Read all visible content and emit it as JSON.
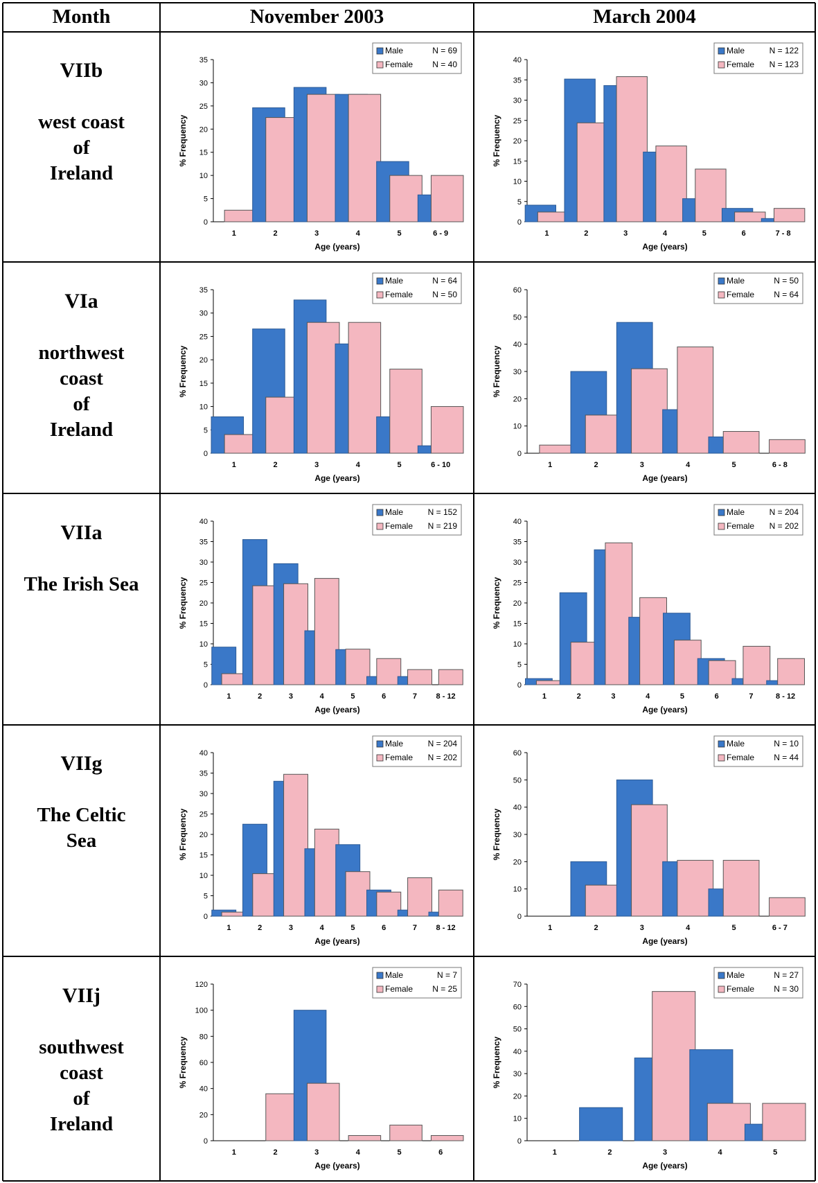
{
  "table": {
    "headers": [
      "Month",
      "November 2003",
      "March 2004"
    ],
    "rows": [
      {
        "code": "VIIb",
        "name": "west coast\nof\nIreland"
      },
      {
        "code": "VIa",
        "name": "northwest\ncoast\nof\nIreland"
      },
      {
        "code": "VIIa",
        "name": "The Irish Sea"
      },
      {
        "code": "VIIg",
        "name": "The Celtic\nSea"
      },
      {
        "code": "VIIj",
        "name": "southwest\ncoast\nof\nIreland"
      }
    ]
  },
  "colors": {
    "male": "#3a78c8",
    "female": "#f4b7c0",
    "grid": "#000000"
  },
  "chart_data": [
    {
      "id": "c00",
      "type": "bar",
      "ylabel": "% Frequency",
      "xlabel": "Age (years)",
      "ylim": [
        0,
        35
      ],
      "yticks": [
        0,
        5,
        10,
        15,
        20,
        25,
        30,
        35
      ],
      "categories": [
        "1",
        "2",
        "3",
        "4",
        "5",
        "6 - 9"
      ],
      "series": [
        {
          "name": "Male",
          "n": "N = 69",
          "values": [
            0,
            24.6,
            29,
            27.5,
            13,
            5.8
          ]
        },
        {
          "name": "Female",
          "n": "N = 40",
          "values": [
            2.5,
            22.5,
            27.5,
            27.5,
            10,
            10
          ]
        }
      ]
    },
    {
      "id": "c01",
      "type": "bar",
      "ylabel": "% Frequency",
      "xlabel": "Age (years)",
      "ylim": [
        0,
        40
      ],
      "yticks": [
        0,
        5,
        10,
        15,
        20,
        25,
        30,
        35,
        40
      ],
      "categories": [
        "1",
        "2",
        "3",
        "4",
        "5",
        "6",
        "7 - 8"
      ],
      "series": [
        {
          "name": "Male",
          "n": "N = 122",
          "values": [
            4.1,
            35.2,
            33.6,
            17.2,
            5.7,
            3.3,
            0.8
          ]
        },
        {
          "name": "Female",
          "n": "N = 123",
          "values": [
            2.4,
            24.4,
            35.8,
            18.7,
            13,
            2.4,
            3.3
          ]
        }
      ]
    },
    {
      "id": "c10",
      "type": "bar",
      "ylabel": "% Frequency",
      "xlabel": "Age (years)",
      "ylim": [
        0,
        35
      ],
      "yticks": [
        0,
        5,
        10,
        15,
        20,
        25,
        30,
        35
      ],
      "categories": [
        "1",
        "2",
        "3",
        "4",
        "5",
        "6 - 10"
      ],
      "series": [
        {
          "name": "Male",
          "n": "N = 64",
          "values": [
            7.8,
            26.6,
            32.8,
            23.4,
            7.8,
            1.6
          ]
        },
        {
          "name": "Female",
          "n": "N = 50",
          "values": [
            4,
            12,
            28,
            28,
            18,
            10
          ]
        }
      ]
    },
    {
      "id": "c11",
      "type": "bar",
      "ylabel": "% Frequency",
      "xlabel": "Age (years)",
      "ylim": [
        0,
        60
      ],
      "yticks": [
        0,
        10,
        20,
        30,
        40,
        50,
        60
      ],
      "categories": [
        "1",
        "2",
        "3",
        "4",
        "5",
        "6 - 8"
      ],
      "series": [
        {
          "name": "Male",
          "n": "N = 50",
          "values": [
            0,
            30,
            48,
            16,
            6,
            0
          ]
        },
        {
          "name": "Female",
          "n": "N = 64",
          "values": [
            3,
            14,
            31,
            39,
            8,
            5
          ]
        }
      ]
    },
    {
      "id": "c20",
      "type": "bar",
      "ylabel": "% Frequency",
      "xlabel": "Age (years)",
      "ylim": [
        0,
        40
      ],
      "yticks": [
        0,
        5,
        10,
        15,
        20,
        25,
        30,
        35,
        40
      ],
      "categories": [
        "1",
        "2",
        "3",
        "4",
        "5",
        "6",
        "7",
        "8 - 12"
      ],
      "series": [
        {
          "name": "Male",
          "n": "N = 152",
          "values": [
            9.2,
            35.5,
            29.6,
            13.2,
            8.6,
            2,
            2,
            0
          ]
        },
        {
          "name": "Female",
          "n": "N = 219",
          "values": [
            2.7,
            24.2,
            24.7,
            26,
            8.7,
            6.4,
            3.7,
            3.7
          ]
        }
      ]
    },
    {
      "id": "c21",
      "type": "bar",
      "ylabel": "% Frequency",
      "xlabel": "Age (years)",
      "ylim": [
        0,
        40
      ],
      "yticks": [
        0,
        5,
        10,
        15,
        20,
        25,
        30,
        35,
        40
      ],
      "categories": [
        "1",
        "2",
        "3",
        "4",
        "5",
        "6",
        "7",
        "8 - 12"
      ],
      "series": [
        {
          "name": "Male",
          "n": "N = 204",
          "values": [
            1.5,
            22.5,
            33,
            16.5,
            17.5,
            6.4,
            1.5,
            1
          ]
        },
        {
          "name": "Female",
          "n": "N = 202",
          "values": [
            1,
            10.4,
            34.7,
            21.3,
            10.9,
            5.9,
            9.4,
            6.4
          ]
        }
      ]
    },
    {
      "id": "c30",
      "type": "bar",
      "ylabel": "% Frequency",
      "xlabel": "Age (years)",
      "ylim": [
        0,
        40
      ],
      "yticks": [
        0,
        5,
        10,
        15,
        20,
        25,
        30,
        35,
        40
      ],
      "categories": [
        "1",
        "2",
        "3",
        "4",
        "5",
        "6",
        "7",
        "8 - 12"
      ],
      "series": [
        {
          "name": "Male",
          "n": "N = 204",
          "values": [
            1.5,
            22.5,
            33,
            16.5,
            17.5,
            6.4,
            1.5,
            1
          ]
        },
        {
          "name": "Female",
          "n": "N = 202",
          "values": [
            1,
            10.4,
            34.7,
            21.3,
            10.9,
            5.9,
            9.4,
            6.4
          ]
        }
      ]
    },
    {
      "id": "c31",
      "type": "bar",
      "ylabel": "% Frequency",
      "xlabel": "Age (years)",
      "ylim": [
        0,
        60
      ],
      "yticks": [
        0,
        10,
        20,
        30,
        40,
        50,
        60
      ],
      "categories": [
        "1",
        "2",
        "3",
        "4",
        "5",
        "6 - 7"
      ],
      "series": [
        {
          "name": "Male",
          "n": "N = 10",
          "values": [
            0,
            20,
            50,
            20,
            10,
            0
          ]
        },
        {
          "name": "Female",
          "n": "N = 44",
          "values": [
            0,
            11.4,
            40.9,
            20.5,
            20.5,
            6.8
          ]
        }
      ]
    },
    {
      "id": "c40",
      "type": "bar",
      "ylabel": "% Frequency",
      "xlabel": "Age (years)",
      "ylim": [
        0,
        120
      ],
      "yticks": [
        0,
        20,
        40,
        60,
        80,
        100,
        120
      ],
      "categories": [
        "1",
        "2",
        "3",
        "4",
        "5",
        "6"
      ],
      "series": [
        {
          "name": "Male",
          "n": "N = 7",
          "values": [
            0,
            0,
            100,
            0,
            0,
            0
          ]
        },
        {
          "name": "Female",
          "n": "N = 25",
          "values": [
            0,
            36,
            44,
            4,
            12,
            4
          ]
        }
      ]
    },
    {
      "id": "c41",
      "type": "bar",
      "ylabel": "% Frequency",
      "xlabel": "Age (years)",
      "ylim": [
        0,
        70
      ],
      "yticks": [
        0,
        10,
        20,
        30,
        40,
        50,
        60,
        70
      ],
      "categories": [
        "1",
        "2",
        "3",
        "4",
        "5"
      ],
      "series": [
        {
          "name": "Male",
          "n": "N = 27",
          "values": [
            0,
            14.8,
            37,
            40.7,
            7.4
          ]
        },
        {
          "name": "Female",
          "n": "N = 30",
          "values": [
            0,
            0,
            66.7,
            16.7,
            16.7
          ]
        }
      ]
    }
  ]
}
